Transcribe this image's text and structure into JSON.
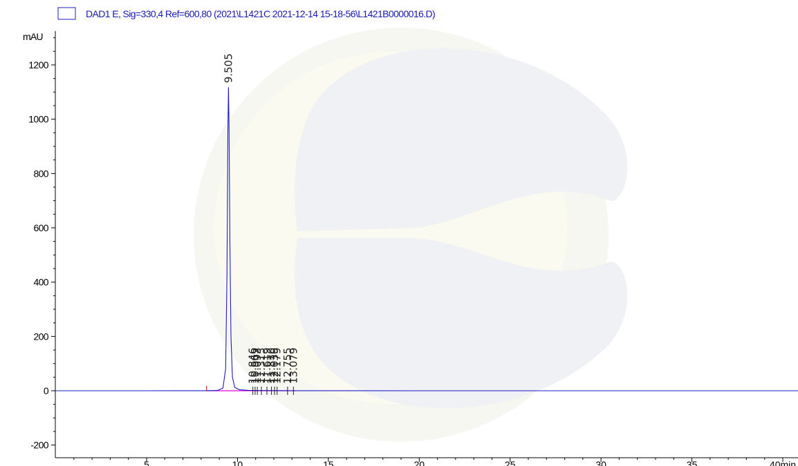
{
  "chart_data": {
    "type": "line",
    "legend": {
      "text": "DAD1 E, Sig=330,4 Ref=600,80 (2021\\L1421C 2021-12-14 15-18-56\\L1421B0000016.D)",
      "placement": "top-left"
    },
    "ylabel": "mAU",
    "xlabel": "min",
    "xlim": [
      0,
      41
    ],
    "ylim": [
      -220,
      1320
    ],
    "x_ticks": [
      5,
      10,
      15,
      20,
      25,
      30,
      35,
      40
    ],
    "x_tick_labels": [
      "5",
      "10",
      "15",
      "20",
      "25",
      "30",
      "35",
      "40"
    ],
    "x_last_tick_label": "40min",
    "y_ticks": [
      -200,
      0,
      200,
      400,
      600,
      800,
      1000,
      1200
    ],
    "y_tick_labels": [
      "-200",
      "0",
      "200",
      "400",
      "600",
      "800",
      "1000",
      "1200"
    ],
    "grid": false,
    "series": [
      {
        "color": "#1c1cc8",
        "x": [
          0,
          5,
          8.3,
          8.9,
          9.2,
          9.35,
          9.42,
          9.47,
          9.505,
          9.54,
          9.58,
          9.64,
          9.72,
          9.85,
          10.1,
          10.6,
          11.5,
          13.0,
          20,
          30,
          41
        ],
        "y": [
          0,
          0,
          0.3,
          1,
          10,
          80,
          420,
          950,
          1118,
          960,
          560,
          200,
          50,
          12,
          4,
          1.5,
          0.8,
          0.3,
          0,
          0,
          0
        ]
      }
    ],
    "baseline_color": "#e000e0",
    "peaks": [
      {
        "rt": 9.505,
        "label": "9.505"
      },
      {
        "rt": 10.846,
        "label": "10.846"
      },
      {
        "rt": 10.969,
        "label": "10.969"
      },
      {
        "rt": 11.093,
        "label": "11.093"
      },
      {
        "rt": 11.315,
        "label": "11.315"
      },
      {
        "rt": 11.619,
        "label": "11.619"
      },
      {
        "rt": 11.87,
        "label": "11.870"
      },
      {
        "rt": 12.039,
        "label": "12.039"
      },
      {
        "rt": 12.179,
        "label": "12.179"
      },
      {
        "rt": 12.755,
        "label": "12.755"
      },
      {
        "rt": 13.079,
        "label": "13.079"
      }
    ],
    "extra_tick_rt": 8.3
  }
}
